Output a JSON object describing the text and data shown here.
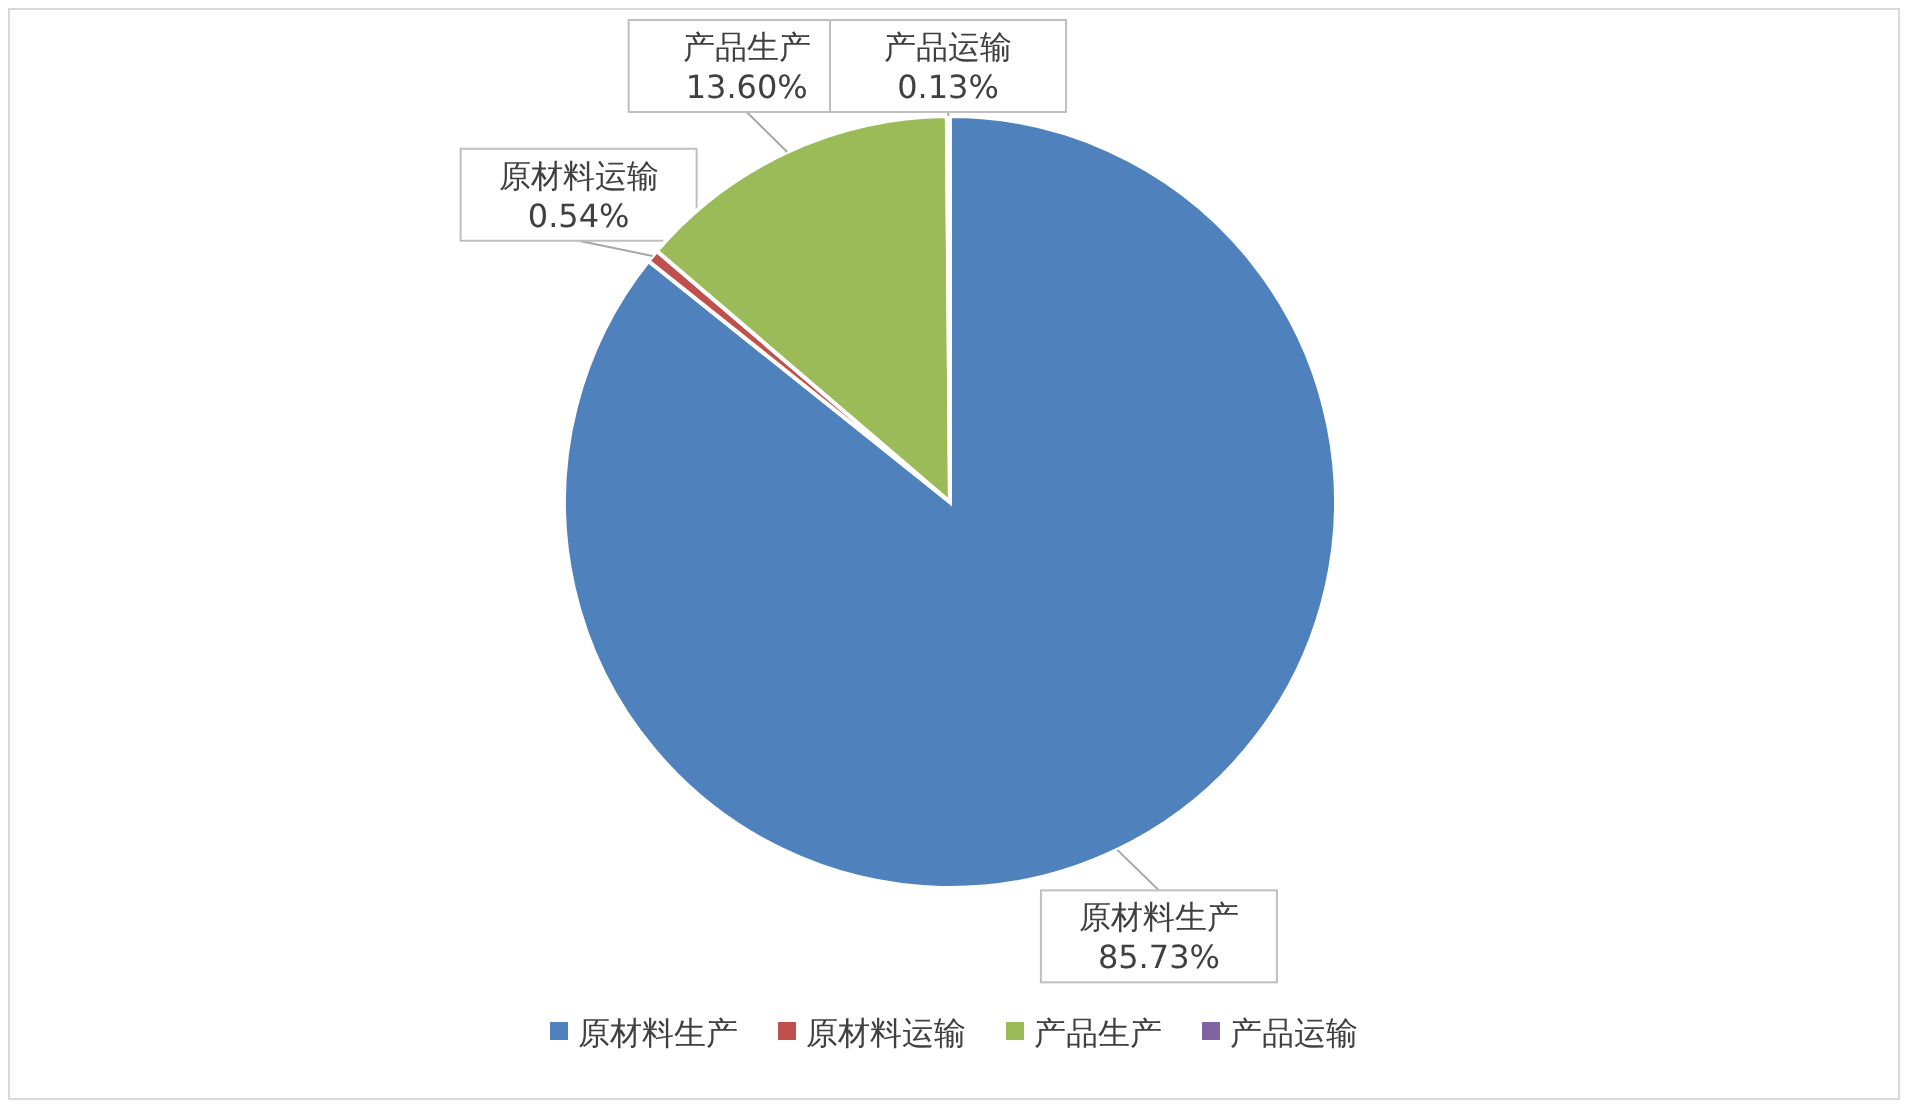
{
  "chart_data": {
    "type": "pie",
    "categories": [
      "原材料生产",
      "原材料运输",
      "产品生产",
      "产品运输"
    ],
    "values": [
      85.73,
      0.54,
      13.6,
      0.13
    ],
    "colors": [
      "#4f81bd",
      "#c0504d",
      "#9bbb59",
      "#8064a2"
    ],
    "value_labels": [
      "85.73%",
      "0.54%",
      "13.60%",
      "0.13%"
    ],
    "legend": "bottom"
  }
}
